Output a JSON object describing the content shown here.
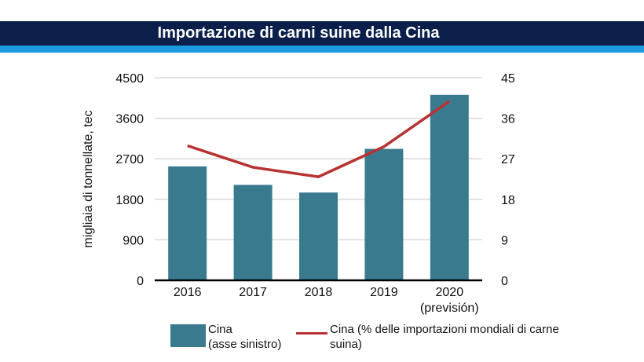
{
  "title": "Importazione di carni suine dalla Cina",
  "chart_data": {
    "type": "bar+line",
    "title": "Importazione di carni suine dalla Cina",
    "categories": [
      "2016",
      "2017",
      "2018",
      "2019",
      "2020"
    ],
    "category_sublabels": [
      "",
      "",
      "",
      "",
      "(previsión)"
    ],
    "ylabel": "migliaia di tonnellate, tec",
    "ylim": [
      0,
      4500
    ],
    "yticks": [
      0,
      900,
      1800,
      2700,
      3600,
      4500
    ],
    "y2lim": [
      0,
      45
    ],
    "y2ticks": [
      0,
      9,
      18,
      27,
      36,
      45
    ],
    "grid": true,
    "legend_position": "bottom",
    "series": [
      {
        "name": "Cina",
        "name_line2": "(asse sinistro)",
        "type": "bar",
        "axis": "left",
        "color": "#3a7a8f",
        "values": [
          2530,
          2120,
          1950,
          2920,
          4120
        ]
      },
      {
        "name": "Cina (% delle importazioni mondiali di carne",
        "name_line2": "suina)",
        "type": "line",
        "axis": "right",
        "color": "#b83232",
        "values": [
          29.9,
          25.1,
          23.0,
          29.7,
          39.8
        ]
      }
    ]
  }
}
